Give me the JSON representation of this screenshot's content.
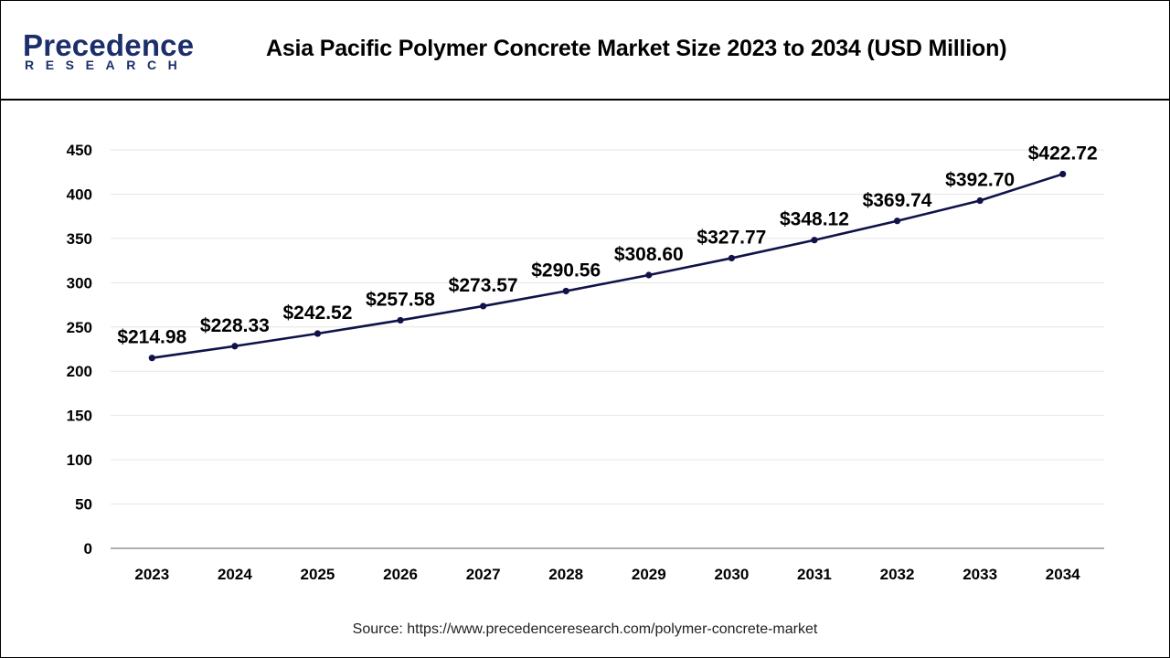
{
  "header": {
    "logo_word": "Precedence",
    "logo_sub": "RESEARCH",
    "title": "Asia Pacific Polymer Concrete Market Size 2023 to 2034 (USD Million)"
  },
  "footer": {
    "source_prefix": "Source: ",
    "source_url": "https://www.precedenceresearch.com/polymer-concrete-market"
  },
  "colors": {
    "line": "#10124a",
    "marker": "#10124a",
    "logo": "#1c2f6b",
    "gridline": "#e6e6e6",
    "axis": "#7f7f7f"
  },
  "chart_data": {
    "type": "line",
    "title": "Asia Pacific Polymer Concrete Market Size 2023 to 2034 (USD Million)",
    "xlabel": "",
    "ylabel": "",
    "categories": [
      "2023",
      "2024",
      "2025",
      "2026",
      "2027",
      "2028",
      "2029",
      "2030",
      "2031",
      "2032",
      "2033",
      "2034"
    ],
    "series": [
      {
        "values": [
          214.98,
          228.33,
          242.52,
          257.58,
          273.57,
          290.56,
          308.6,
          327.77,
          348.12,
          369.74,
          392.7,
          422.72
        ],
        "labels": [
          "$214.98",
          "$228.33",
          "$242.52",
          "$257.58",
          "$273.57",
          "$290.56",
          "$308.60",
          "$327.77",
          "$348.12",
          "$369.74",
          "$392.70",
          "$422.72"
        ]
      }
    ],
    "ylim": [
      0,
      450
    ],
    "yticks": [
      "0",
      "50",
      "100",
      "150",
      "200",
      "250",
      "300",
      "350",
      "400",
      "450"
    ],
    "grid": true,
    "legend": "none"
  }
}
